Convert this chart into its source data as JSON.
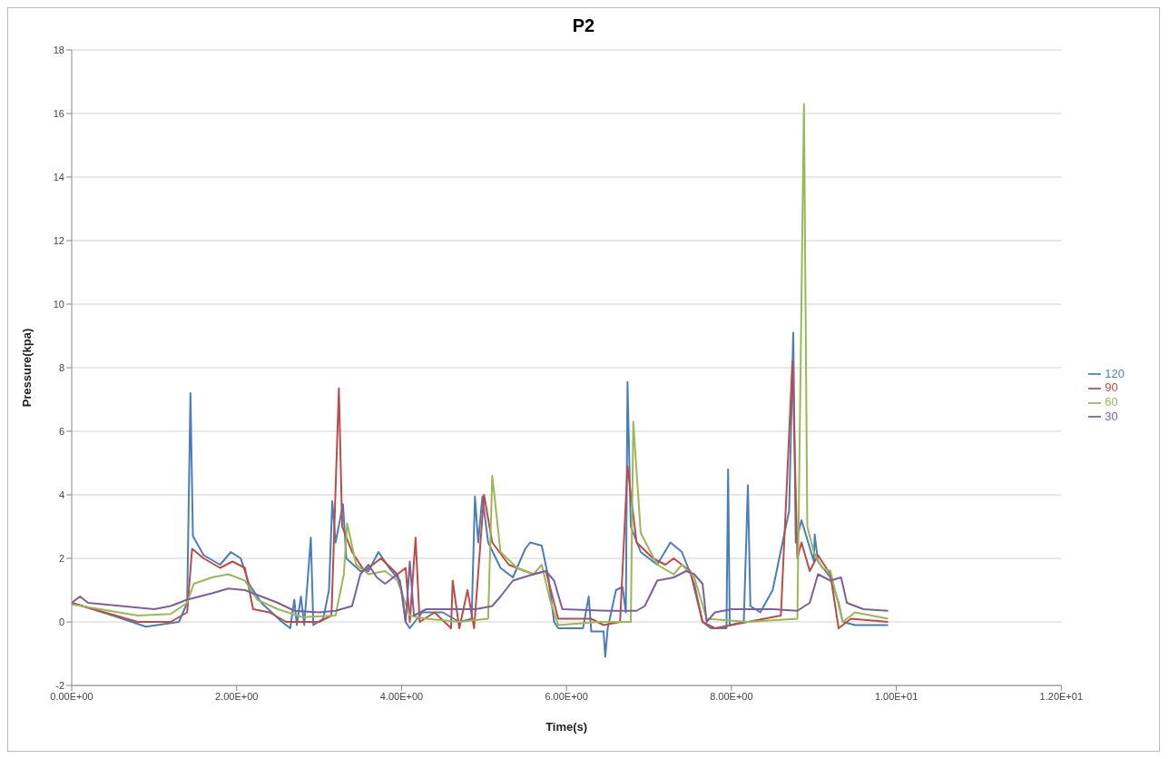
{
  "chart_data": {
    "type": "line",
    "title": "P2",
    "xlabel": "Time(s)",
    "ylabel": "Pressure(kpa)",
    "xlim": [
      0,
      12
    ],
    "xticks": [
      {
        "value": 0,
        "label": "0.00E+00"
      },
      {
        "value": 2,
        "label": "2.00E+00"
      },
      {
        "value": 4,
        "label": "4.00E+00"
      },
      {
        "value": 6,
        "label": "6.00E+00"
      },
      {
        "value": 8,
        "label": "8.00E+00"
      },
      {
        "value": 10,
        "label": "1.00E+01"
      },
      {
        "value": 12,
        "label": "1.20E+01"
      }
    ],
    "ylim": [
      -2,
      18
    ],
    "yticks": [
      -2,
      0,
      2,
      4,
      6,
      8,
      10,
      12,
      14,
      16,
      18
    ],
    "grid": "y",
    "legend": "right",
    "marker": "none",
    "line_style": "solid",
    "series": [
      {
        "name": "120",
        "color": "#4a7ebb",
        "x": [
          0,
          0.5,
          0.9,
          1.3,
          1.4,
          1.44,
          1.47,
          1.6,
          1.8,
          1.93,
          2.05,
          2.15,
          2.3,
          2.55,
          2.65,
          2.7,
          2.73,
          2.78,
          2.82,
          2.9,
          2.93,
          3.05,
          3.12,
          3.16,
          3.2,
          3.29,
          3.33,
          3.5,
          3.6,
          3.72,
          3.85,
          3.98,
          4.05,
          4.1,
          4.25,
          4.5,
          4.7,
          4.85,
          4.89,
          4.93,
          4.98,
          5.05,
          5.2,
          5.35,
          5.5,
          5.56,
          5.7,
          5.78,
          5.85,
          5.9,
          6.2,
          6.27,
          6.3,
          6.45,
          6.47,
          6.5,
          6.6,
          6.68,
          6.72,
          6.74,
          6.78,
          6.9,
          7.1,
          7.26,
          7.4,
          7.55,
          7.65,
          7.75,
          7.94,
          7.96,
          7.98,
          8.15,
          8.2,
          8.23,
          8.35,
          8.5,
          8.7,
          8.75,
          8.78,
          8.85,
          9.0,
          9.01,
          9.05,
          9.2,
          9.3,
          9.35,
          9.5,
          9.9
        ],
        "values": [
          0.6,
          0.2,
          -0.15,
          0,
          0.6,
          7.2,
          2.7,
          2.1,
          1.8,
          2.2,
          2,
          1.2,
          0.6,
          0,
          -0.2,
          0.7,
          -0.1,
          0.8,
          -0.1,
          2.65,
          -0.1,
          0.1,
          1,
          3.8,
          2.5,
          3.7,
          2,
          1.6,
          1.6,
          2.2,
          1.7,
          1.3,
          0,
          -0.2,
          0.3,
          0.3,
          0,
          0.1,
          3.95,
          2.5,
          3.95,
          2.5,
          1.7,
          1.4,
          2.3,
          2.5,
          2.4,
          1.4,
          0,
          -0.2,
          -0.2,
          0.8,
          -0.3,
          -0.3,
          -1.1,
          -0.2,
          1,
          1.1,
          0.3,
          7.55,
          3,
          2.2,
          1.8,
          2.5,
          2.2,
          1.2,
          0,
          -0.2,
          -0.2,
          4.8,
          -0.1,
          0,
          4.3,
          0.5,
          0.3,
          1,
          3.5,
          9.1,
          2.5,
          3.2,
          1.9,
          2.75,
          1.9,
          1.4,
          0.6,
          0,
          -0.1,
          -0.1
        ]
      },
      {
        "name": "90",
        "color": "#be4b48",
        "x": [
          0,
          0.8,
          1.2,
          1.4,
          1.46,
          1.6,
          1.8,
          1.95,
          2.1,
          2.2,
          2.4,
          2.6,
          3,
          3.15,
          3.24,
          3.28,
          3.4,
          3.55,
          3.75,
          3.95,
          4.05,
          4.1,
          4.17,
          4.22,
          4.4,
          4.6,
          4.62,
          4.7,
          4.8,
          4.88,
          5,
          5.1,
          5.3,
          5.6,
          5.75,
          5.9,
          6.3,
          6.45,
          6.65,
          6.74,
          6.85,
          7.05,
          7.2,
          7.3,
          7.5,
          7.65,
          7.8,
          8.2,
          8.6,
          8.74,
          8.8,
          8.85,
          8.95,
          9.05,
          9.2,
          9.3,
          9.45,
          9.9
        ],
        "values": [
          0.6,
          0,
          0,
          0.3,
          2.3,
          2,
          1.7,
          1.9,
          1.7,
          0.4,
          0.3,
          0,
          0,
          0.2,
          7.35,
          3,
          2.2,
          1.6,
          2,
          1.5,
          1.7,
          0,
          2.65,
          0,
          0.3,
          -0.2,
          1.3,
          -0.2,
          1,
          -0.2,
          4,
          2.5,
          1.8,
          1.5,
          1.6,
          0.1,
          0.1,
          -0.1,
          0,
          4.9,
          2.5,
          2,
          1.8,
          2,
          1.6,
          0,
          -0.2,
          0,
          0.2,
          8.2,
          2,
          2.5,
          1.6,
          2.1,
          1.5,
          -0.2,
          0.1,
          0
        ]
      },
      {
        "name": "60",
        "color": "#98b954",
        "x": [
          0,
          0.8,
          1.2,
          1.4,
          1.48,
          1.7,
          1.9,
          2.1,
          2.25,
          2.5,
          2.8,
          3.2,
          3.3,
          3.34,
          3.45,
          3.6,
          3.8,
          3.95,
          4.1,
          4.3,
          4.7,
          5.05,
          5.1,
          5.2,
          5.4,
          5.6,
          5.7,
          5.8,
          5.9,
          6.4,
          6.78,
          6.81,
          6.9,
          7.1,
          7.3,
          7.4,
          7.55,
          7.7,
          8.2,
          8.8,
          8.88,
          8.92,
          9.0,
          9.1,
          9.2,
          9.35,
          9.5,
          9.9
        ],
        "values": [
          0.55,
          0.2,
          0.25,
          0.6,
          1.2,
          1.4,
          1.5,
          1.3,
          0.7,
          0.4,
          0.15,
          0.2,
          1.5,
          3.1,
          1.8,
          1.5,
          1.6,
          1.3,
          0.2,
          0.1,
          0,
          0.1,
          4.6,
          2.2,
          1.7,
          1.5,
          1.8,
          0.7,
          -0.1,
          0,
          0,
          6.3,
          2.8,
          1.8,
          1.5,
          1.8,
          1.4,
          0.1,
          0,
          0.1,
          16.3,
          3,
          2.2,
          1.7,
          1.6,
          0,
          0.3,
          0.1
        ]
      },
      {
        "name": "30",
        "color": "#7d5fa0",
        "x": [
          0,
          0.1,
          0.2,
          1,
          1.2,
          1.4,
          1.7,
          1.9,
          2.1,
          2.3,
          2.5,
          2.7,
          3,
          3.2,
          3.4,
          3.5,
          3.6,
          3.7,
          3.8,
          3.95,
          4,
          4.05,
          4.1,
          4.15,
          4.3,
          4.9,
          5.1,
          5.2,
          5.35,
          5.6,
          5.75,
          5.85,
          5.95,
          6.5,
          6.85,
          6.95,
          7.1,
          7.3,
          7.45,
          7.55,
          7.65,
          7.7,
          7.8,
          8,
          8.5,
          8.8,
          8.95,
          9.05,
          9.2,
          9.33,
          9.4,
          9.6,
          9.9
        ],
        "values": [
          0.6,
          0.8,
          0.6,
          0.4,
          0.5,
          0.7,
          0.9,
          1.05,
          1,
          0.8,
          0.6,
          0.35,
          0.3,
          0.35,
          0.5,
          1.5,
          1.8,
          1.4,
          1.2,
          1.5,
          1,
          0,
          1.9,
          0.2,
          0.4,
          0.4,
          0.5,
          0.8,
          1.3,
          1.5,
          1.6,
          1.3,
          0.4,
          0.35,
          0.35,
          0.5,
          1.3,
          1.4,
          1.6,
          1.5,
          1.2,
          0,
          0.3,
          0.4,
          0.4,
          0.35,
          0.6,
          1.5,
          1.3,
          1.4,
          0.6,
          0.4,
          0.35
        ]
      }
    ]
  }
}
